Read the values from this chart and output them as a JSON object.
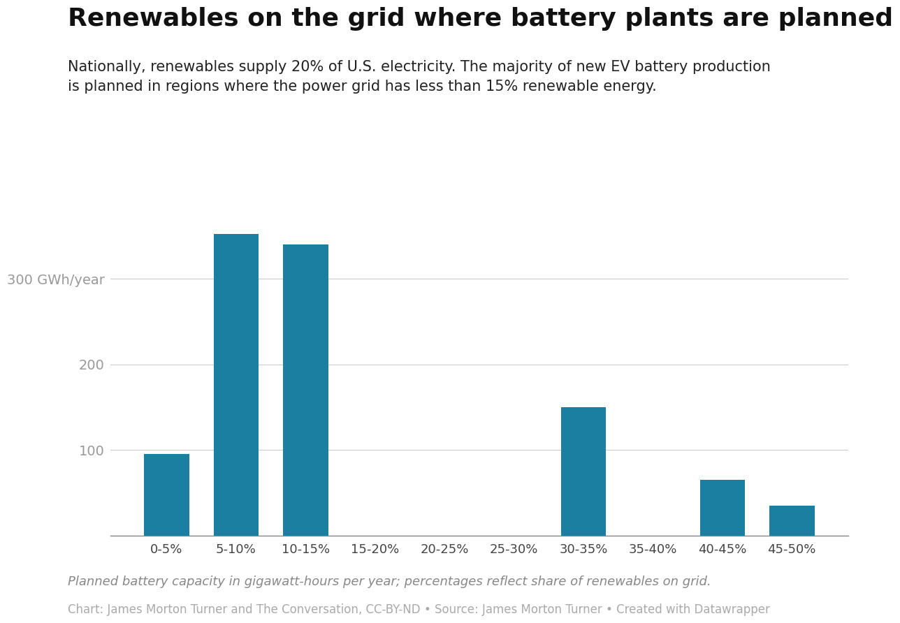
{
  "title": "Renewables on the grid where battery plants are planned",
  "subtitle_line1": "Nationally, renewables supply 20% of U.S. electricity. The majority of new EV battery production",
  "subtitle_line2": "is planned in regions where the power grid has less than 15% renewable energy.",
  "categories": [
    "0-5%",
    "5-10%",
    "10-15%",
    "15-20%",
    "20-25%",
    "25-30%",
    "30-35%",
    "35-40%",
    "40-45%",
    "45-50%"
  ],
  "values": [
    95,
    352,
    340,
    0,
    0,
    0,
    150,
    0,
    65,
    35
  ],
  "bar_color": "#1a7fa0",
  "background_color": "#ffffff",
  "yticks": [
    0,
    100,
    200,
    300
  ],
  "ylim": [
    0,
    390
  ],
  "grid_color": "#cccccc",
  "axis_label_color": "#999999",
  "tick_label_color": "#444444",
  "footnote_italic": "Planned battery capacity in gigawatt-hours per year; percentages reflect share of renewables on grid.",
  "footnote_source": "Chart: James Morton Turner and The Conversation, CC-BY-ND • Source: James Morton Turner • Created with Datawrapper",
  "title_fontsize": 26,
  "subtitle_fontsize": 15,
  "ytick_fontsize": 14,
  "xtick_fontsize": 13,
  "footnote_fontsize": 13,
  "source_fontsize": 12
}
